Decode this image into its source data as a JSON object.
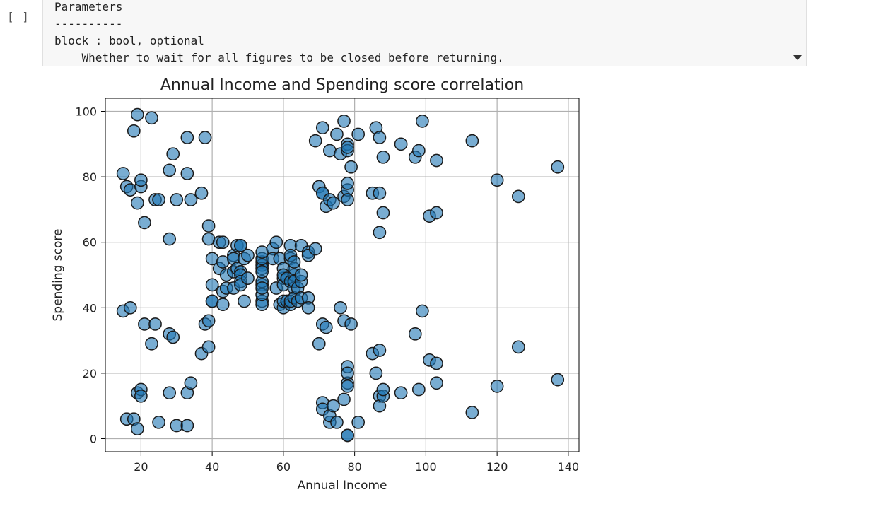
{
  "cell": {
    "prompt": "[ ]",
    "output_lines": [
      "Parameters",
      "----------",
      "block : bool, optional",
      "    Whether to wait for all figures to be closed before returning."
    ]
  },
  "colors": {
    "marker_fill": "#1f77b4",
    "marker_edge": "#1a1a1a",
    "grid": "#b0b0b0"
  },
  "chart_data": {
    "type": "scatter",
    "title": "Annual Income and Spending score correlation",
    "xlabel": "Annual Income",
    "ylabel": "Spending score",
    "xlim": [
      10,
      143
    ],
    "ylim": [
      -4,
      104
    ],
    "xticks": [
      20,
      40,
      60,
      80,
      100,
      120,
      140
    ],
    "yticks": [
      0,
      20,
      40,
      60,
      80,
      100
    ],
    "grid": true,
    "points": [
      [
        15,
        39
      ],
      [
        15,
        81
      ],
      [
        16,
        6
      ],
      [
        16,
        77
      ],
      [
        17,
        40
      ],
      [
        17,
        76
      ],
      [
        18,
        6
      ],
      [
        18,
        94
      ],
      [
        19,
        3
      ],
      [
        19,
        72
      ],
      [
        19,
        14
      ],
      [
        19,
        99
      ],
      [
        20,
        15
      ],
      [
        20,
        77
      ],
      [
        20,
        13
      ],
      [
        20,
        79
      ],
      [
        21,
        35
      ],
      [
        21,
        66
      ],
      [
        23,
        29
      ],
      [
        23,
        98
      ],
      [
        24,
        35
      ],
      [
        24,
        73
      ],
      [
        25,
        5
      ],
      [
        25,
        73
      ],
      [
        28,
        14
      ],
      [
        28,
        82
      ],
      [
        28,
        32
      ],
      [
        28,
        61
      ],
      [
        29,
        31
      ],
      [
        29,
        87
      ],
      [
        30,
        4
      ],
      [
        30,
        73
      ],
      [
        33,
        4
      ],
      [
        33,
        92
      ],
      [
        33,
        14
      ],
      [
        33,
        81
      ],
      [
        34,
        17
      ],
      [
        34,
        73
      ],
      [
        37,
        26
      ],
      [
        37,
        75
      ],
      [
        38,
        35
      ],
      [
        38,
        92
      ],
      [
        39,
        36
      ],
      [
        39,
        61
      ],
      [
        39,
        28
      ],
      [
        39,
        65
      ],
      [
        40,
        55
      ],
      [
        40,
        47
      ],
      [
        40,
        42
      ],
      [
        40,
        42
      ],
      [
        42,
        52
      ],
      [
        42,
        60
      ],
      [
        43,
        54
      ],
      [
        43,
        60
      ],
      [
        43,
        45
      ],
      [
        43,
        41
      ],
      [
        44,
        50
      ],
      [
        44,
        46
      ],
      [
        46,
        51
      ],
      [
        46,
        46
      ],
      [
        46,
        56
      ],
      [
        46,
        55
      ],
      [
        47,
        52
      ],
      [
        47,
        59
      ],
      [
        48,
        51
      ],
      [
        48,
        59
      ],
      [
        48,
        50
      ],
      [
        48,
        48
      ],
      [
        48,
        59
      ],
      [
        48,
        47
      ],
      [
        49,
        55
      ],
      [
        49,
        42
      ],
      [
        50,
        49
      ],
      [
        50,
        56
      ],
      [
        54,
        47
      ],
      [
        54,
        54
      ],
      [
        54,
        53
      ],
      [
        54,
        48
      ],
      [
        54,
        52
      ],
      [
        54,
        42
      ],
      [
        54,
        51
      ],
      [
        54,
        55
      ],
      [
        54,
        41
      ],
      [
        54,
        44
      ],
      [
        54,
        57
      ],
      [
        54,
        46
      ],
      [
        57,
        58
      ],
      [
        57,
        55
      ],
      [
        58,
        60
      ],
      [
        58,
        46
      ],
      [
        59,
        55
      ],
      [
        59,
        41
      ],
      [
        60,
        49
      ],
      [
        60,
        40
      ],
      [
        60,
        42
      ],
      [
        60,
        52
      ],
      [
        60,
        47
      ],
      [
        60,
        50
      ],
      [
        61,
        42
      ],
      [
        61,
        49
      ],
      [
        62,
        41
      ],
      [
        62,
        48
      ],
      [
        62,
        59
      ],
      [
        62,
        55
      ],
      [
        62,
        56
      ],
      [
        62,
        42
      ],
      [
        63,
        50
      ],
      [
        63,
        46
      ],
      [
        63,
        43
      ],
      [
        63,
        48
      ],
      [
        63,
        52
      ],
      [
        63,
        54
      ],
      [
        64,
        42
      ],
      [
        64,
        46
      ],
      [
        65,
        48
      ],
      [
        65,
        50
      ],
      [
        65,
        43
      ],
      [
        65,
        59
      ],
      [
        67,
        43
      ],
      [
        67,
        57
      ],
      [
        67,
        56
      ],
      [
        67,
        40
      ],
      [
        69,
        58
      ],
      [
        69,
        91
      ],
      [
        70,
        29
      ],
      [
        70,
        77
      ],
      [
        71,
        35
      ],
      [
        71,
        95
      ],
      [
        71,
        11
      ],
      [
        71,
        75
      ],
      [
        71,
        9
      ],
      [
        71,
        75
      ],
      [
        72,
        34
      ],
      [
        72,
        71
      ],
      [
        73,
        5
      ],
      [
        73,
        88
      ],
      [
        73,
        7
      ],
      [
        73,
        73
      ],
      [
        74,
        10
      ],
      [
        74,
        72
      ],
      [
        75,
        5
      ],
      [
        75,
        93
      ],
      [
        76,
        40
      ],
      [
        76,
        87
      ],
      [
        77,
        12
      ],
      [
        77,
        97
      ],
      [
        77,
        36
      ],
      [
        77,
        74
      ],
      [
        78,
        22
      ],
      [
        78,
        90
      ],
      [
        78,
        17
      ],
      [
        78,
        88
      ],
      [
        78,
        20
      ],
      [
        78,
        76
      ],
      [
        78,
        16
      ],
      [
        78,
        89
      ],
      [
        78,
        1
      ],
      [
        78,
        78
      ],
      [
        78,
        1
      ],
      [
        78,
        73
      ],
      [
        79,
        35
      ],
      [
        79,
        83
      ],
      [
        81,
        5
      ],
      [
        81,
        93
      ],
      [
        85,
        26
      ],
      [
        85,
        75
      ],
      [
        86,
        20
      ],
      [
        86,
        95
      ],
      [
        87,
        27
      ],
      [
        87,
        63
      ],
      [
        87,
        13
      ],
      [
        87,
        75
      ],
      [
        87,
        10
      ],
      [
        87,
        92
      ],
      [
        88,
        13
      ],
      [
        88,
        86
      ],
      [
        88,
        15
      ],
      [
        88,
        69
      ],
      [
        93,
        14
      ],
      [
        93,
        90
      ],
      [
        97,
        32
      ],
      [
        97,
        86
      ],
      [
        98,
        15
      ],
      [
        98,
        88
      ],
      [
        99,
        39
      ],
      [
        99,
        97
      ],
      [
        101,
        24
      ],
      [
        101,
        68
      ],
      [
        103,
        17
      ],
      [
        103,
        85
      ],
      [
        103,
        23
      ],
      [
        103,
        69
      ],
      [
        113,
        8
      ],
      [
        113,
        91
      ],
      [
        120,
        16
      ],
      [
        120,
        79
      ],
      [
        126,
        28
      ],
      [
        126,
        74
      ],
      [
        137,
        18
      ],
      [
        137,
        83
      ]
    ]
  }
}
